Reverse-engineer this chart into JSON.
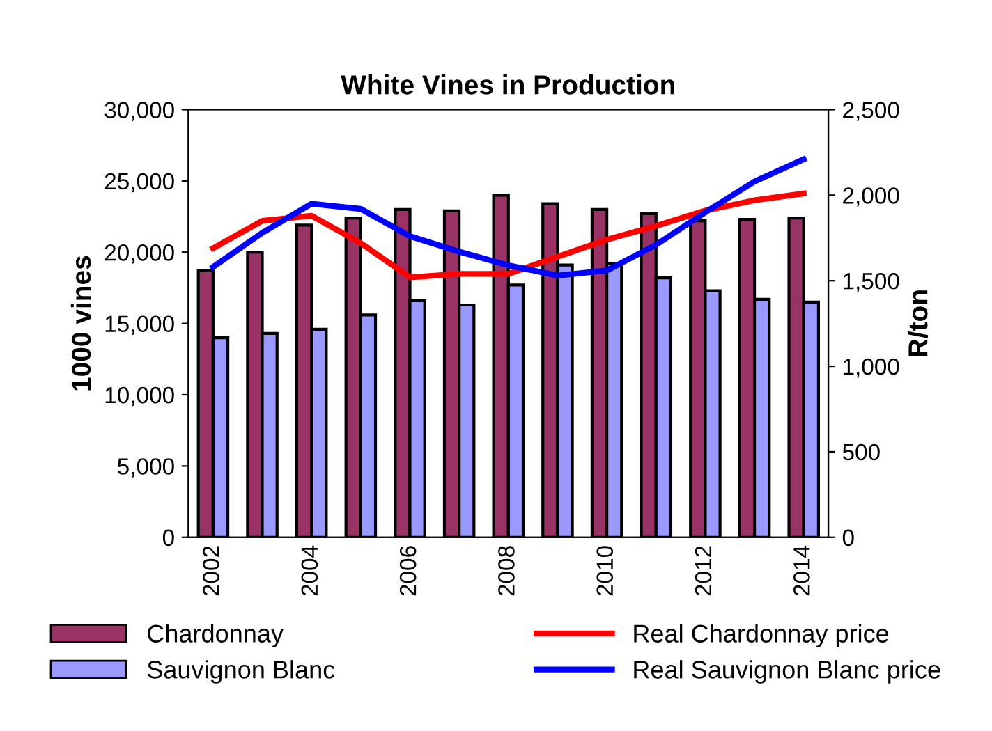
{
  "chart_data": {
    "type": "bar",
    "title": "White Vines in Production",
    "ylabel": "1000 vines",
    "y2label": "R/ton",
    "categories": [
      "2002",
      null,
      "2004",
      null,
      "2006",
      null,
      "2008",
      null,
      "2010",
      null,
      "2012",
      null,
      "2014"
    ],
    "series": [
      {
        "name": "Chardonnay",
        "color": "#993366",
        "values": [
          18700,
          20000,
          21900,
          22400,
          23000,
          22900,
          24000,
          23400,
          23000,
          22700,
          22200,
          22300,
          22400
        ]
      },
      {
        "name": "Sauvignon Blanc",
        "color": "#9999ff",
        "values": [
          14000,
          14300,
          14600,
          15600,
          16600,
          16300,
          17700,
          19100,
          19200,
          18200,
          17300,
          16700,
          16500
        ]
      },
      {
        "name": "Real Chardonnay price",
        "type": "line",
        "axis": "y2",
        "color": "#ff0000",
        "values": [
          1690,
          1850,
          1880,
          1720,
          1520,
          1540,
          1540,
          1640,
          1740,
          1820,
          1910,
          1970,
          2010
        ]
      },
      {
        "name": "Real Sauvignon Blanc price",
        "type": "line",
        "axis": "y2",
        "color": "#0000ff",
        "values": [
          1580,
          1780,
          1950,
          1920,
          1760,
          1670,
          1590,
          1530,
          1560,
          1710,
          1900,
          2080,
          2210
        ]
      }
    ],
    "ylim": [
      0,
      30000
    ],
    "yticks": [
      {
        "value": 0,
        "label": "0"
      },
      {
        "value": 5000,
        "label": "5,000"
      },
      {
        "value": 10000,
        "label": "10,000"
      },
      {
        "value": 15000,
        "label": "15,000"
      },
      {
        "value": 20000,
        "label": "20,000"
      },
      {
        "value": 25000,
        "label": "25,000"
      },
      {
        "value": 30000,
        "label": "30,000"
      }
    ],
    "y2lim": [
      0,
      2500
    ],
    "y2ticks": [
      {
        "value": 0,
        "label": "0"
      },
      {
        "value": 500,
        "label": "500"
      },
      {
        "value": 1000,
        "label": "1,000"
      },
      {
        "value": 1500,
        "label": "1,500"
      },
      {
        "value": 2000,
        "label": "2,000"
      },
      {
        "value": 2500,
        "label": "2,500"
      }
    ],
    "grid": false,
    "legend": "bottom",
    "marker": "none",
    "line_style": "solid"
  }
}
